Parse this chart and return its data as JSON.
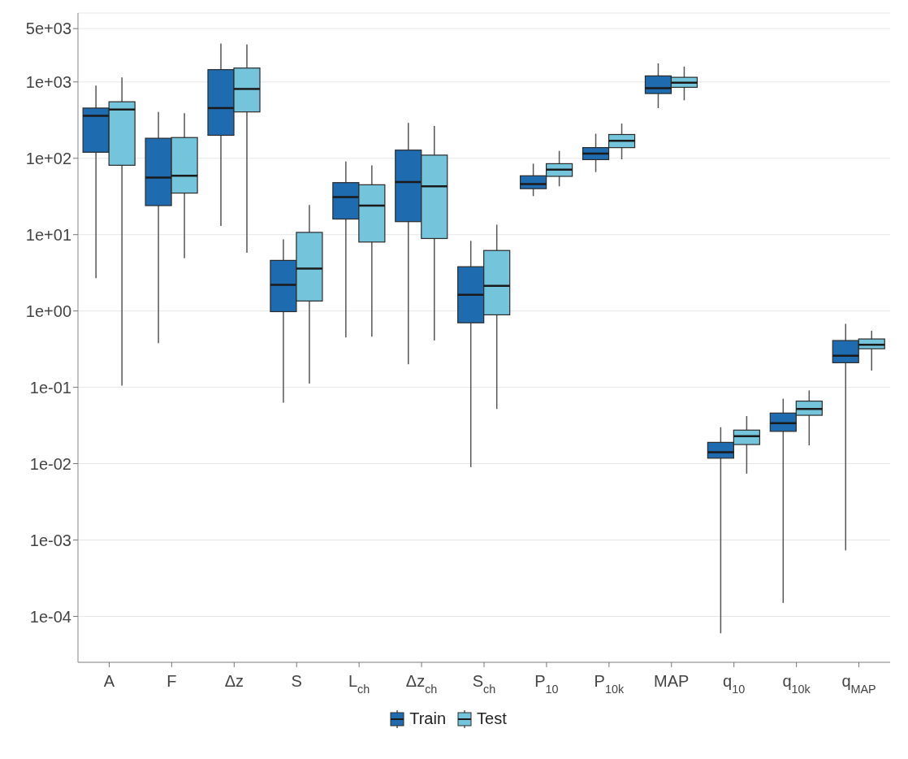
{
  "chart_data": {
    "type": "box",
    "categories": [
      "A",
      "F",
      "Δz",
      "S",
      "L$_{ch}$",
      "Δz$_{ch}$",
      "S$_{ch}$",
      "P$_{10}$",
      "P$_{10k}$",
      "MAP",
      "q$_{10}$",
      "q$_{10k}$",
      "q$_{MAP}$"
    ],
    "series": [
      {
        "name": "Train",
        "color": "#1f6bb0",
        "boxes": [
          {
            "low": 2.7,
            "q1": 120,
            "median": 360,
            "q3": 455,
            "high": 900
          },
          {
            "low": 0.38,
            "q1": 24,
            "median": 56,
            "q3": 183,
            "high": 405
          },
          {
            "low": 13,
            "q1": 200,
            "median": 455,
            "q3": 1450,
            "high": 3200
          },
          {
            "low": 0.063,
            "q1": 0.98,
            "median": 2.2,
            "q3": 4.6,
            "high": 8.7
          },
          {
            "low": 0.45,
            "q1": 16,
            "median": 31,
            "q3": 48,
            "high": 91
          },
          {
            "low": 0.2,
            "q1": 14.8,
            "median": 49,
            "q3": 128,
            "high": 290
          },
          {
            "low": 0.009,
            "q1": 0.7,
            "median": 1.63,
            "q3": 3.8,
            "high": 8.3
          },
          {
            "low": 32,
            "q1": 40,
            "median": 46,
            "q3": 59,
            "high": 85
          },
          {
            "low": 66,
            "q1": 96,
            "median": 115,
            "q3": 138,
            "high": 210
          },
          {
            "low": 455,
            "q1": 705,
            "median": 830,
            "q3": 1200,
            "high": 1750
          },
          {
            "low": 6e-05,
            "q1": 0.0118,
            "median": 0.0141,
            "q3": 0.019,
            "high": 0.03
          },
          {
            "low": 0.00015,
            "q1": 0.0265,
            "median": 0.034,
            "q3": 0.046,
            "high": 0.071
          },
          {
            "low": 0.00073,
            "q1": 0.21,
            "median": 0.26,
            "q3": 0.41,
            "high": 0.68
          }
        ]
      },
      {
        "name": "Test",
        "color": "#74c4db",
        "boxes": [
          {
            "low": 0.105,
            "q1": 81,
            "median": 435,
            "q3": 550,
            "high": 1150
          },
          {
            "low": 4.9,
            "q1": 35,
            "median": 59,
            "q3": 187,
            "high": 390
          },
          {
            "low": 5.8,
            "q1": 405,
            "median": 810,
            "q3": 1520,
            "high": 3100
          },
          {
            "low": 0.112,
            "q1": 1.35,
            "median": 3.6,
            "q3": 10.7,
            "high": 24.5
          },
          {
            "low": 0.46,
            "q1": 8,
            "median": 24,
            "q3": 45,
            "high": 81
          },
          {
            "low": 0.41,
            "q1": 8.9,
            "median": 43,
            "q3": 110,
            "high": 265
          },
          {
            "low": 0.052,
            "q1": 0.89,
            "median": 2.14,
            "q3": 6.2,
            "high": 13.5
          },
          {
            "low": 43,
            "q1": 58,
            "median": 71,
            "q3": 85,
            "high": 125
          },
          {
            "low": 97,
            "q1": 138,
            "median": 170,
            "q3": 205,
            "high": 285
          },
          {
            "low": 575,
            "q1": 850,
            "median": 980,
            "q3": 1150,
            "high": 1590
          },
          {
            "low": 0.0074,
            "q1": 0.0178,
            "median": 0.0229,
            "q3": 0.0275,
            "high": 0.042
          },
          {
            "low": 0.0174,
            "q1": 0.043,
            "median": 0.052,
            "q3": 0.066,
            "high": 0.091
          },
          {
            "low": 0.166,
            "q1": 0.32,
            "median": 0.36,
            "q3": 0.43,
            "high": 0.55
          }
        ]
      }
    ],
    "log": true,
    "ylim": [
      2.5e-05,
      8000
    ],
    "yticks": [
      {
        "value": 5000,
        "label": "5e+03"
      },
      {
        "value": 1000,
        "label": "1e+03"
      },
      {
        "value": 100,
        "label": "1e+02"
      },
      {
        "value": 10,
        "label": "1e+01"
      },
      {
        "value": 1,
        "label": "1e+00"
      },
      {
        "value": 0.1,
        "label": "1e-01"
      },
      {
        "value": 0.01,
        "label": "1e-02"
      },
      {
        "value": 0.001,
        "label": "1e-03"
      },
      {
        "value": 0.0001,
        "label": "1e-04"
      }
    ],
    "grid": "y",
    "legend": "bottom"
  }
}
